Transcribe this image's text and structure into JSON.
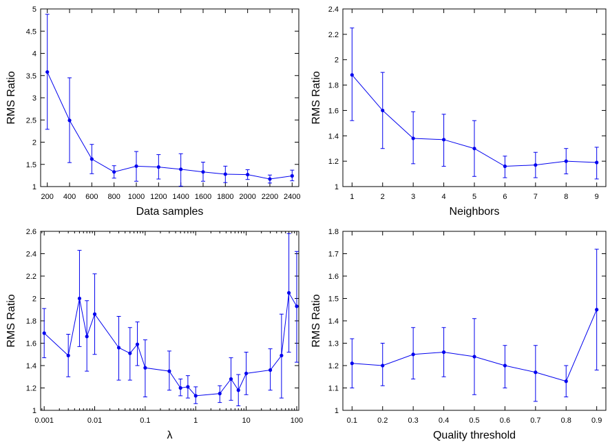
{
  "chart_data": [
    {
      "type": "line",
      "xlabel": "Data samples",
      "ylabel": "RMS Ratio",
      "xscale": "linear",
      "xlim": [
        140,
        2460
      ],
      "ylim": [
        1,
        5
      ],
      "xticks": [
        200,
        400,
        600,
        800,
        1000,
        1200,
        1400,
        1600,
        1800,
        2000,
        2200,
        2400
      ],
      "xtick_labels": [
        "200",
        "400",
        "600",
        "800",
        "1000",
        "1200",
        "1400",
        "1600",
        "1800",
        "2000",
        "2200",
        "2400"
      ],
      "yticks": [
        1,
        1.5,
        2,
        2.5,
        3,
        3.5,
        4,
        4.5,
        5
      ],
      "ytick_labels": [
        "1",
        "1.5",
        "2",
        "2.5",
        "3",
        "3.5",
        "4",
        "4.5",
        "5"
      ],
      "color": "#0000ee",
      "grid": false,
      "series": [
        {
          "x": [
            200,
            400,
            600,
            800,
            1000,
            1200,
            1400,
            1600,
            1800,
            2000,
            2200,
            2400
          ],
          "y": [
            3.58,
            2.49,
            1.62,
            1.33,
            1.46,
            1.44,
            1.39,
            1.33,
            1.28,
            1.27,
            1.17,
            1.24
          ],
          "err_low": [
            2.29,
            1.54,
            1.29,
            1.19,
            1.12,
            1.17,
            1.01,
            1.12,
            1.09,
            1.16,
            1.08,
            1.13
          ],
          "err_high": [
            4.88,
            3.45,
            1.95,
            1.47,
            1.79,
            1.72,
            1.74,
            1.55,
            1.46,
            1.38,
            1.26,
            1.37
          ]
        }
      ]
    },
    {
      "type": "line",
      "xlabel": "Neighbors",
      "ylabel": "RMS Ratio",
      "xscale": "linear",
      "xlim": [
        0.7,
        9.3
      ],
      "ylim": [
        1,
        2.4
      ],
      "xticks": [
        1,
        2,
        3,
        4,
        5,
        6,
        7,
        8,
        9
      ],
      "xtick_labels": [
        "1",
        "2",
        "3",
        "4",
        "5",
        "6",
        "7",
        "8",
        "9"
      ],
      "yticks": [
        1,
        1.2,
        1.4,
        1.6,
        1.8,
        2,
        2.2,
        2.4
      ],
      "ytick_labels": [
        "1",
        "1.2",
        "1.4",
        "1.6",
        "1.8",
        "2",
        "2.2",
        "2.4"
      ],
      "color": "#0000ee",
      "grid": false,
      "series": [
        {
          "x": [
            1,
            2,
            3,
            4,
            5,
            6,
            7,
            8,
            9
          ],
          "y": [
            1.88,
            1.6,
            1.38,
            1.37,
            1.3,
            1.16,
            1.17,
            1.2,
            1.19
          ],
          "err_low": [
            1.52,
            1.3,
            1.18,
            1.16,
            1.08,
            1.07,
            1.07,
            1.1,
            1.06
          ],
          "err_high": [
            2.25,
            1.9,
            1.59,
            1.57,
            1.52,
            1.24,
            1.27,
            1.3,
            1.31
          ]
        }
      ]
    },
    {
      "type": "line",
      "xlabel": "λ",
      "ylabel": "RMS Ratio",
      "xscale": "log",
      "xlim": [
        0.00085,
        110
      ],
      "ylim": [
        1,
        2.6
      ],
      "xticks": [
        0.001,
        0.01,
        0.1,
        1,
        10,
        100
      ],
      "xtick_labels": [
        "0.001",
        "0.01",
        "0.1",
        "1",
        "10",
        "100"
      ],
      "yticks": [
        1,
        1.2,
        1.4,
        1.6,
        1.8,
        2,
        2.2,
        2.4,
        2.6
      ],
      "ytick_labels": [
        "1",
        "1.2",
        "1.4",
        "1.6",
        "1.8",
        "2",
        "2.2",
        "2.4",
        "2.6"
      ],
      "color": "#0000ee",
      "grid": false,
      "series": [
        {
          "x": [
            0.001,
            0.003,
            0.005,
            0.007,
            0.01,
            0.03,
            0.05,
            0.07,
            0.1,
            0.3,
            0.5,
            0.7,
            1,
            3,
            5,
            7,
            10,
            30,
            50,
            70,
            100
          ],
          "y": [
            1.69,
            1.49,
            2.0,
            1.66,
            1.86,
            1.56,
            1.51,
            1.59,
            1.38,
            1.35,
            1.2,
            1.21,
            1.13,
            1.15,
            1.28,
            1.18,
            1.33,
            1.36,
            1.49,
            2.05,
            1.93
          ],
          "err_low": [
            1.47,
            1.3,
            1.57,
            1.35,
            1.5,
            1.27,
            1.27,
            1.4,
            1.12,
            1.18,
            1.13,
            1.11,
            1.06,
            1.07,
            1.09,
            1.04,
            1.14,
            1.18,
            1.11,
            1.52,
            1.43
          ],
          "err_high": [
            1.91,
            1.68,
            2.43,
            1.98,
            2.22,
            1.84,
            1.74,
            1.79,
            1.63,
            1.53,
            1.28,
            1.31,
            1.21,
            1.22,
            1.47,
            1.32,
            1.52,
            1.55,
            1.86,
            2.58,
            2.42
          ]
        }
      ]
    },
    {
      "type": "line",
      "xlabel": "Quality threshold",
      "ylabel": "RMS Ratio",
      "xscale": "linear",
      "xlim": [
        0.07,
        0.93
      ],
      "ylim": [
        1,
        1.8
      ],
      "xticks": [
        0.1,
        0.2,
        0.3,
        0.4,
        0.5,
        0.6,
        0.7,
        0.8,
        0.9
      ],
      "xtick_labels": [
        "0.1",
        "0.2",
        "0.3",
        "0.4",
        "0.5",
        "0.6",
        "0.7",
        "0.8",
        "0.9"
      ],
      "yticks": [
        1,
        1.1,
        1.2,
        1.3,
        1.4,
        1.5,
        1.6,
        1.7,
        1.8
      ],
      "ytick_labels": [
        "1",
        "1.1",
        "1.2",
        "1.3",
        "1.4",
        "1.5",
        "1.6",
        "1.7",
        "1.8"
      ],
      "color": "#0000ee",
      "grid": false,
      "series": [
        {
          "x": [
            0.1,
            0.2,
            0.3,
            0.4,
            0.5,
            0.6,
            0.7,
            0.8,
            0.9
          ],
          "y": [
            1.21,
            1.2,
            1.25,
            1.26,
            1.24,
            1.2,
            1.17,
            1.13,
            1.45
          ],
          "err_low": [
            1.1,
            1.11,
            1.14,
            1.15,
            1.07,
            1.1,
            1.04,
            1.06,
            1.18
          ],
          "err_high": [
            1.32,
            1.3,
            1.37,
            1.37,
            1.41,
            1.29,
            1.29,
            1.2,
            1.72
          ]
        }
      ]
    }
  ]
}
